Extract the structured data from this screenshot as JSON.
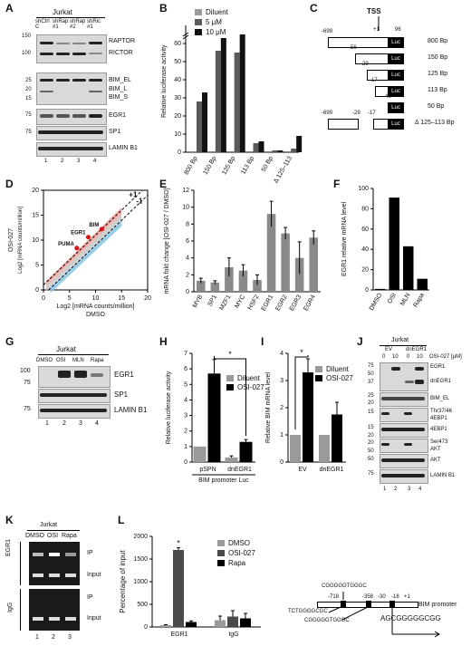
{
  "panel_labels": {
    "A": "A",
    "B": "B",
    "C": "C",
    "D": "D",
    "E": "E",
    "F": "F",
    "G": "G",
    "H": "H",
    "I": "I",
    "J": "J",
    "K": "K",
    "L": "L"
  },
  "panelA": {
    "cell_line": "Jurkat",
    "lanes": [
      "shCtrl C",
      "shRap #1",
      "shRap #2",
      "shRic #1"
    ],
    "lane_numbers": [
      "1",
      "2",
      "3",
      "4"
    ],
    "mw": [
      "150",
      "100",
      "25",
      "20",
      "15",
      "75",
      "75"
    ],
    "proteins": [
      "RAPTOR",
      "RICTOR",
      "BIM_EL",
      "BIM_L",
      "BIM_S",
      "EGR1",
      "SP1",
      "LAMIN B1"
    ]
  },
  "panelC": {
    "tss": "TSS",
    "top_positions": [
      "+1",
      "96"
    ],
    "constructs": [
      {
        "label": "800 Bp",
        "start": "-699"
      },
      {
        "label": "150 Bp",
        "start": "-56"
      },
      {
        "label": "125 Bp",
        "start": "-29"
      },
      {
        "label": "113 Bp",
        "start": "-17"
      },
      {
        "label": "50 Bp",
        "start": "46"
      },
      {
        "label": "Δ 125–113 Bp",
        "start": "-699"
      }
    ],
    "deletion_positions": [
      "-29",
      "-17"
    ],
    "luc": "Luc"
  },
  "panelG": {
    "cell_line": "Jurkat",
    "lanes": [
      "DMSO",
      "OSI",
      "MLN",
      "Rapa"
    ],
    "lane_numbers": [
      "1",
      "2",
      "3",
      "4"
    ],
    "mw": [
      "100",
      "75",
      "75"
    ],
    "proteins": [
      "EGR1",
      "SP1",
      "LAMIN B1"
    ]
  },
  "panelJ": {
    "cell_line": "Jurkat",
    "groups": [
      "EV",
      "dnEGR1"
    ],
    "doses": [
      "0",
      "10",
      "0",
      "10"
    ],
    "dose_label": "OSI-027 [μM]",
    "lane_numbers": [
      "1",
      "2",
      "3",
      "4"
    ],
    "mw": [
      "75",
      "50",
      "37",
      "25",
      "20",
      "15",
      "15",
      "20",
      "20",
      "50",
      "50",
      "75"
    ],
    "proteins": [
      "EGR1",
      "dnEGR1",
      "BIM_EL",
      "Thr37/46",
      "4EBP1",
      "4EBP1",
      "Ser473",
      "AKT",
      "AKT",
      "LAMIN B1"
    ]
  },
  "panelK": {
    "cell_line": "Jurkat",
    "lanes": [
      "DMSO",
      "OSI",
      "Rapa"
    ],
    "lane_numbers": [
      "1",
      "2",
      "3"
    ],
    "rows": [
      "IP",
      "Input",
      "IP",
      "Input"
    ],
    "groups": [
      "EGR1",
      "IgG"
    ]
  },
  "panelL_diagram": {
    "sequences": [
      "CGGGGGTGGGC",
      "TCTGGGGCGC",
      "CGGGGGTGGGC",
      "AGCGGGGGCGG"
    ],
    "positions": [
      "-718",
      "-358",
      "-30",
      "-18",
      "+1"
    ],
    "label": "BIM promoter"
  },
  "chart_data": [
    {
      "id": "B",
      "type": "bar",
      "categories": [
        "800 Bp",
        "150 Bp",
        "125 Bp",
        "113 Bp",
        "50 Bp",
        "Δ 125–113"
      ],
      "series": [
        {
          "name": "Diluent",
          "values": [
            0,
            0,
            0,
            0,
            0,
            0
          ],
          "color": "#9a9a9a"
        },
        {
          "name": "5 μM",
          "values": [
            28,
            56,
            55,
            5,
            1,
            2
          ],
          "color": "#5a5a5a"
        },
        {
          "name": "10 μM",
          "values": [
            33,
            63,
            65,
            6,
            1,
            9
          ],
          "color": "#111111"
        }
      ],
      "ylabel": "Relative luciferase activity",
      "ylim": [
        0,
        70
      ],
      "yticks": [
        "0",
        "10",
        "20",
        "30",
        "40",
        "50",
        "60"
      ],
      "broken_axis": true
    },
    {
      "id": "D",
      "type": "scatter",
      "xlabel": "Log2 [mRNA counts/million] DMSO",
      "xlabel_main": "Log",
      "xlabel_sub": "2",
      "xlabel_rest": " [mRNA counts/million]",
      "xlabel_line2": "DMSO",
      "ylabel_line1": "OSI-027",
      "ylabel_line2": "Log2 [mRNA counts/million]",
      "xlim": [
        0,
        20
      ],
      "ylim": [
        0,
        20
      ],
      "xticks": [
        "0",
        "5",
        "10",
        "15",
        "20"
      ],
      "yticks": [
        "0",
        "5",
        "10",
        "15",
        "20"
      ],
      "lines": [
        "+1",
        "-1"
      ],
      "labeled_points": [
        {
          "label": "BIM",
          "x": 11.2,
          "y": 12.2
        },
        {
          "label": "EGR1",
          "x": 8.6,
          "y": 10.6
        },
        {
          "label": "PUMA",
          "x": 6.4,
          "y": 8.4
        }
      ]
    },
    {
      "id": "E",
      "type": "bar",
      "categories": [
        "MYB",
        "SP1",
        "MZF1",
        "MYC",
        "HSF2",
        "EGR1",
        "EGR2",
        "EGR3",
        "EGR4"
      ],
      "values": [
        1.3,
        1.1,
        2.9,
        2.5,
        1.4,
        9.2,
        6.9,
        4.0,
        6.4
      ],
      "errors": [
        0.3,
        0.2,
        1.1,
        0.7,
        0.6,
        1.5,
        0.7,
        1.9,
        0.8
      ],
      "ylabel": "mRNA fold change [OSI-027 / DMSO]",
      "ylim": [
        0,
        12
      ],
      "yticks": [
        "0",
        "2",
        "4",
        "6",
        "8",
        "10",
        "12"
      ]
    },
    {
      "id": "F",
      "type": "bar",
      "categories": [
        "DMSO",
        "OSI",
        "MLN",
        "Rapa"
      ],
      "values": [
        1,
        91,
        43,
        11
      ],
      "ylabel": "EGR1 relative mRNA level",
      "ylim": [
        0,
        100
      ],
      "yticks": [
        "0",
        "20",
        "40",
        "60",
        "80",
        "100"
      ]
    },
    {
      "id": "H",
      "type": "bar",
      "categories": [
        "pSPN",
        "dnEGR1"
      ],
      "xlabel": "BIM promoter Luc",
      "series": [
        {
          "name": "Diluent",
          "values": [
            1.0,
            0.3
          ],
          "errors": [
            0,
            0.1
          ],
          "color": "#9a9a9a"
        },
        {
          "name": "OSI-027",
          "values": [
            5.7,
            1.3
          ],
          "errors": [
            0.9,
            0.15
          ],
          "color": "#000000"
        }
      ],
      "ylabel": "Relative luciferase activity",
      "ylim": [
        0,
        7
      ],
      "yticks": [
        "0",
        "1",
        "2",
        "3",
        "4",
        "5",
        "6",
        "7"
      ],
      "significance": "*"
    },
    {
      "id": "I",
      "type": "bar",
      "categories": [
        "EV",
        "dnEGR1"
      ],
      "series": [
        {
          "name": "Diluent",
          "values": [
            1.0,
            1.0
          ],
          "errors": [
            0,
            0
          ],
          "color": "#9a9a9a"
        },
        {
          "name": "OSI-027",
          "values": [
            3.3,
            1.75
          ],
          "errors": [
            0.5,
            0.45
          ],
          "color": "#000000"
        }
      ],
      "ylabel": "Relative BIM mRNA level",
      "ylim": [
        0,
        4
      ],
      "yticks": [
        "0",
        "1",
        "2",
        "3",
        "4"
      ],
      "significance": "*"
    },
    {
      "id": "L",
      "type": "bar",
      "categories": [
        "EGR1",
        "IgG"
      ],
      "series": [
        {
          "name": "DMSO",
          "values": [
            40,
            150
          ],
          "errors": [
            10,
            90
          ],
          "color": "#9a9a9a"
        },
        {
          "name": "OSI-027",
          "values": [
            1700,
            230
          ],
          "errors": [
            50,
            130
          ],
          "color": "#4a4a4a"
        },
        {
          "name": "Rapa",
          "values": [
            110,
            190
          ],
          "errors": [
            25,
            110
          ],
          "color": "#000000"
        }
      ],
      "ylabel": "Percentage of input",
      "ylim": [
        0,
        2000
      ],
      "yticks": [
        "0",
        "500",
        "1000",
        "1500",
        "2000"
      ],
      "significance": "*"
    }
  ]
}
